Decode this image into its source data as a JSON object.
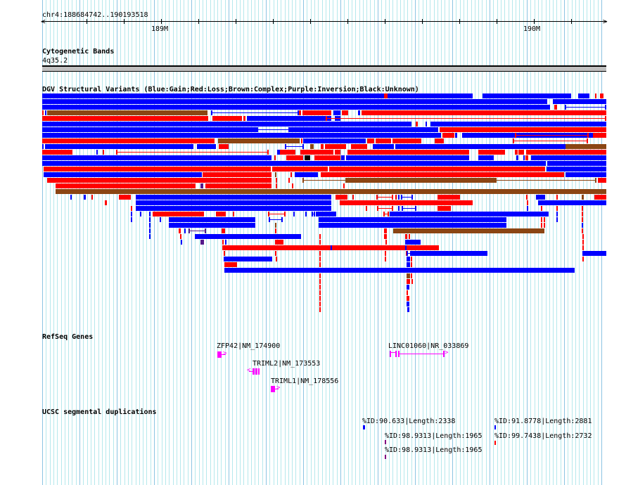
{
  "header": {
    "location": "chr4:188684742..190193518",
    "ticks": [
      "189M",
      "190M"
    ]
  },
  "tracks": {
    "cytoband": {
      "title": "Cytogenetic Bands",
      "band_label": "4q35.2"
    },
    "dgv": {
      "title": "DGV Structural Variants (Blue:Gain;Red:Loss;Brown:Complex;Purple:Inversion;Black:Unknown)",
      "colors": {
        "gain": "#0000ff",
        "loss": "#ff0000",
        "complex": "#8b4513",
        "inversion": "#551a8b",
        "unknown": "#000000"
      }
    },
    "refseq": {
      "title": "RefSeq Genes",
      "genes": [
        {
          "label": "ZFP42|NM_174900",
          "strand": "+"
        },
        {
          "label": "TRIML2|NM_173553",
          "strand": "-"
        },
        {
          "label": "TRIML1|NM_178556",
          "strand": "+"
        },
        {
          "label": "LINC01060|NR_033869",
          "strand": "+"
        }
      ],
      "color": "#ff00ff"
    },
    "segdups": {
      "title": "UCSC segmental duplications",
      "items": [
        {
          "label": "%ID:90.633|Length:2338",
          "color": "#0000ff"
        },
        {
          "label": "%ID:98.9313|Length:1965",
          "color": "#800080"
        },
        {
          "label": "%ID:98.9313|Length:1965",
          "color": "#800080"
        },
        {
          "label": "%ID:91.8778|Length:2881",
          "color": "#0000ff"
        },
        {
          "label": "%ID:99.7438|Length:2732",
          "color": "#ff0000"
        }
      ]
    }
  }
}
